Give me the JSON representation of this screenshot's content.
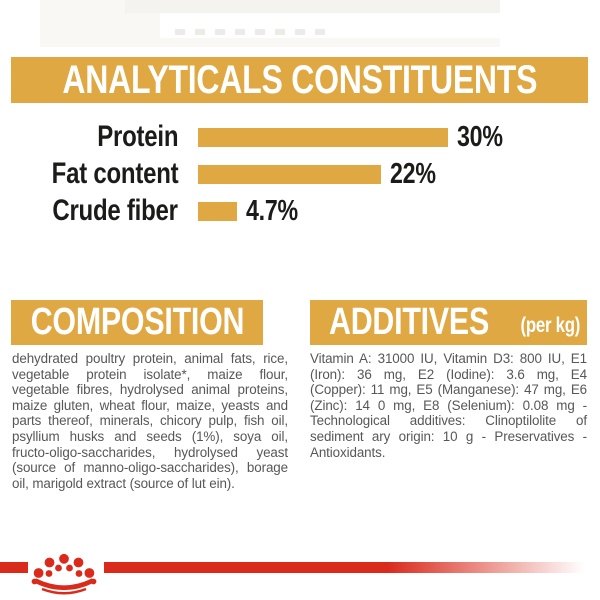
{
  "colors": {
    "gold": "#dfa843",
    "red": "#d92a1c",
    "banner_text": "#ffffff",
    "chart_text": "#1b1b19",
    "body_text": "#57575a"
  },
  "analyticals": {
    "title": "ANALYTICALS CONSTITUENTS"
  },
  "chart_data": {
    "type": "bar",
    "orientation": "horizontal",
    "title": "ANALYTICALS CONSTITUENTS",
    "categories": [
      "Protein",
      "Fat content",
      "Crude fiber"
    ],
    "values": [
      30,
      22,
      4.7
    ],
    "value_labels": [
      "30%",
      "22%",
      "4.7%"
    ],
    "unit": "%",
    "xlim": [
      0,
      36
    ],
    "bar_color": "#dfa843",
    "grid": false,
    "legend": "none"
  },
  "composition": {
    "title": "COMPOSITION",
    "body": "dehydrated poultry protein, animal fats, rice, vegetable protein isolate*, maize flour, vegetable fibres, hydrolysed animal proteins, maize gluten, wheat flour, maize, yeasts and parts thereof, minerals, chicory pulp, fish oil, psyllium husks and seeds (1%), soya oil, fructo-oligo-saccharides, hydrolysed yeast (source of manno-oligo-saccharides), borage oil, marigold extract (source of lut ein)."
  },
  "additives": {
    "title": "ADDITIVES",
    "unit_suffix": "(per kg)",
    "body": "Vitamin A: 31000 IU, Vitamin D3: 800 IU, E1 (Iron): 36 mg, E2 (Iodine): 3.6 mg, E4 (Copper): 11 mg, E5 (Manganese): 47 mg, E6 (Zinc): 14 0 mg, E8 (Selenium): 0.08 mg -Technological additives: Clinoptilolite of sediment ary origin: 10 g - Preservatives - Antioxidants."
  },
  "footer": {
    "logo": "royal-canin-crown",
    "stripe_color": "#d92a1c"
  }
}
